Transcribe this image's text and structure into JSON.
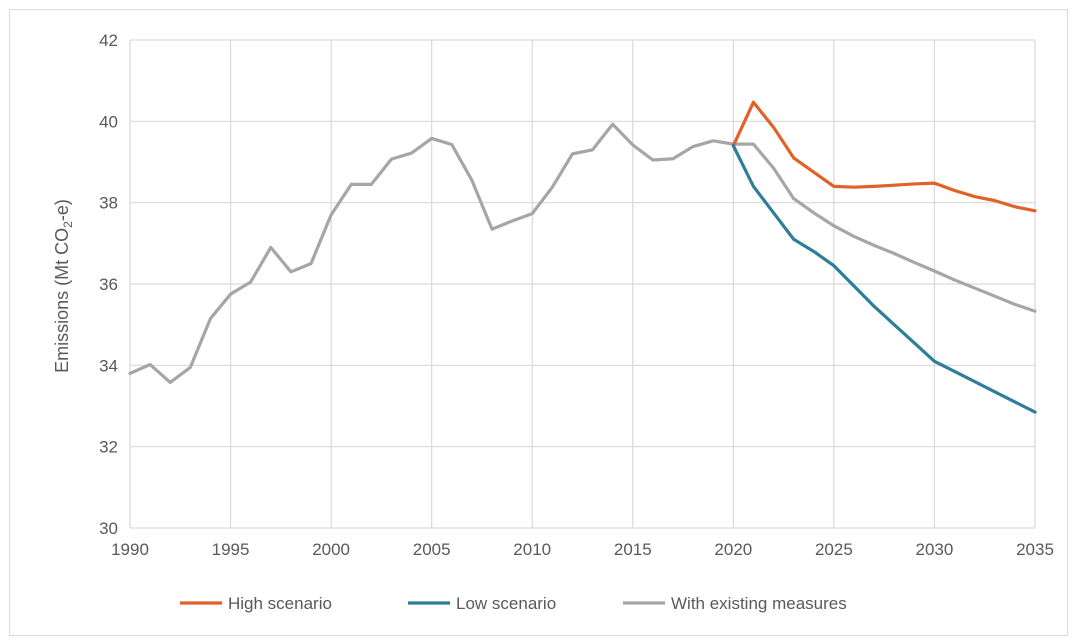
{
  "chart_data": {
    "type": "line",
    "title": "",
    "xlabel": "",
    "ylabel": "Emissions (Mt CO2-e)",
    "ylabel_parts": {
      "before": "Emissions (Mt CO",
      "sub": "2",
      "after": "-e)"
    },
    "xlim": [
      1990,
      2035
    ],
    "ylim": [
      30,
      42
    ],
    "x_ticks": [
      1990,
      1995,
      2000,
      2005,
      2010,
      2015,
      2020,
      2025,
      2030,
      2035
    ],
    "y_ticks": [
      30,
      32,
      34,
      36,
      38,
      40,
      42
    ],
    "grid": true,
    "legend_position": "bottom",
    "series": [
      {
        "name": "High scenario",
        "color": "#e0622a",
        "x": [
          2020,
          2021,
          2022,
          2023,
          2024,
          2025,
          2026,
          2027,
          2028,
          2029,
          2030,
          2031,
          2032,
          2033,
          2034,
          2035
        ],
        "values": [
          39.4,
          40.47,
          39.85,
          39.1,
          38.75,
          38.4,
          38.38,
          38.4,
          38.43,
          38.46,
          38.48,
          38.3,
          38.15,
          38.05,
          37.9,
          37.8
        ]
      },
      {
        "name": "Low scenario",
        "color": "#2e7d99",
        "x": [
          2020,
          2021,
          2022,
          2023,
          2024,
          2025,
          2026,
          2027,
          2028,
          2029,
          2030,
          2031,
          2032,
          2033,
          2034,
          2035
        ],
        "values": [
          39.4,
          38.4,
          37.75,
          37.1,
          36.8,
          36.45,
          35.95,
          35.45,
          35.0,
          34.55,
          34.1,
          33.85,
          33.6,
          33.35,
          33.1,
          32.85
        ]
      },
      {
        "name": "With existing measures",
        "color": "#a6a6a6",
        "x": [
          1990,
          1991,
          1992,
          1993,
          1994,
          1995,
          1996,
          1997,
          1998,
          1999,
          2000,
          2001,
          2002,
          2003,
          2004,
          2005,
          2006,
          2007,
          2008,
          2009,
          2010,
          2011,
          2012,
          2013,
          2014,
          2015,
          2016,
          2017,
          2018,
          2019,
          2020,
          2021,
          2022,
          2023,
          2024,
          2025,
          2026,
          2027,
          2028,
          2029,
          2030,
          2031,
          2032,
          2033,
          2034,
          2035
        ],
        "values": [
          33.8,
          34.02,
          33.58,
          33.95,
          35.15,
          35.75,
          36.05,
          36.9,
          36.3,
          36.5,
          37.7,
          38.45,
          38.45,
          39.07,
          39.22,
          39.58,
          39.43,
          38.55,
          37.35,
          37.55,
          37.73,
          38.38,
          39.2,
          39.3,
          39.93,
          39.42,
          39.05,
          39.08,
          39.38,
          39.52,
          39.44,
          39.44,
          38.85,
          38.1,
          37.75,
          37.43,
          37.17,
          36.95,
          36.75,
          36.53,
          36.32,
          36.1,
          35.9,
          35.7,
          35.5,
          35.33
        ]
      }
    ]
  }
}
